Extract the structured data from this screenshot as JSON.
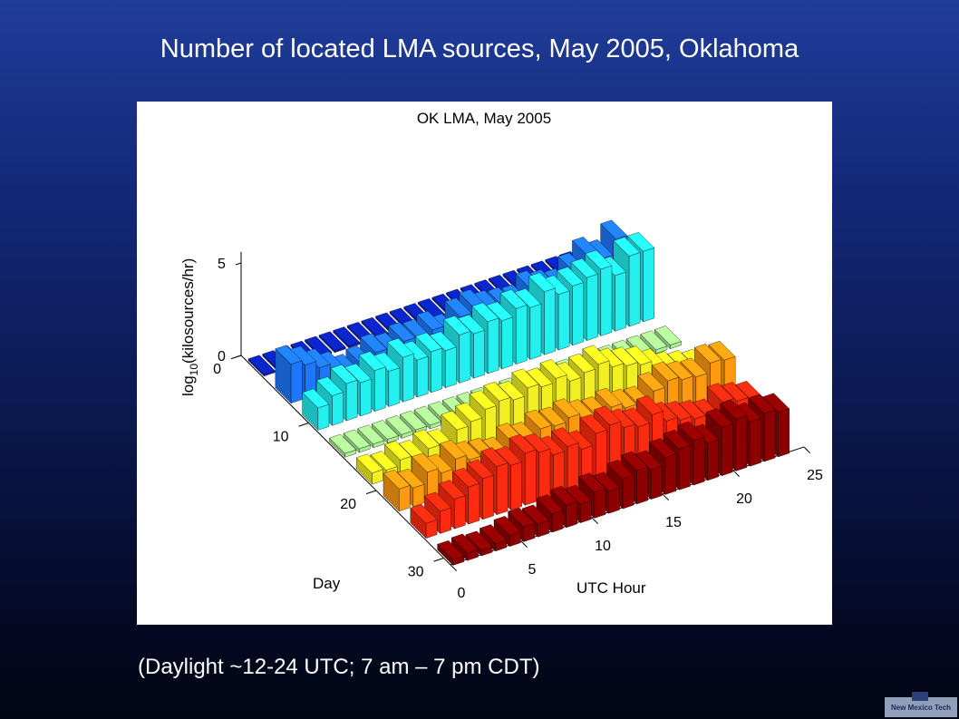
{
  "slide": {
    "title": "Number of located LMA sources, May 2005, Oklahoma",
    "caption": "(Daylight ~12-24 UTC;  7 am – 7 pm CDT)",
    "logo_text": "New Mexico Tech"
  },
  "chart_data": {
    "type": "bar3d",
    "title": "OK LMA, May 2005",
    "xlabel": "UTC Hour",
    "ylabel": "Day",
    "zlabel_parts": [
      "log",
      "10",
      "(kilosources/hr)"
    ],
    "x_ticks": [
      "0",
      "5",
      "10",
      "15",
      "20",
      "25"
    ],
    "y_ticks": [
      "0",
      "10",
      "20",
      "30"
    ],
    "z_ticks": [
      "0",
      "5"
    ],
    "xlim": [
      0,
      25
    ],
    "ylim": [
      0,
      31
    ],
    "zlim": [
      0,
      5
    ],
    "colormap": "jet",
    "rows": [
      {
        "day": 2,
        "color": "#0a22b8",
        "values": [
          0.1,
          0.1,
          0.1,
          0.1,
          0.1,
          0.1,
          0.1,
          0.1,
          0.1,
          0.1,
          0.1,
          0.1,
          0.1,
          0.1,
          0.1,
          0.1,
          0.1,
          0.1,
          0.1,
          0.1,
          0.1,
          0.1,
          0.1,
          0.1
        ]
      },
      {
        "day": 6,
        "color": "#1e78ff",
        "values": [
          2.1,
          1.8,
          1.4,
          1.0,
          0.6,
          0.8,
          1.2,
          1.0,
          1.3,
          1.2,
          1.4,
          1.0,
          1.6,
          1.8,
          1.5,
          1.4,
          1.3,
          1.8,
          1.6,
          1.4,
          2.0,
          2.6,
          2.2,
          3.0
        ]
      },
      {
        "day": 10,
        "color": "#24f0f0",
        "values": [
          1.2,
          1.6,
          2.0,
          1.8,
          2.2,
          1.9,
          2.4,
          2.0,
          2.2,
          2.0,
          2.6,
          2.4,
          2.8,
          2.6,
          3.0,
          2.8,
          3.4,
          3.0,
          3.2,
          3.4,
          3.6,
          3.0,
          3.8,
          3.8
        ]
      },
      {
        "day": 14,
        "color": "#a8f090",
        "values": [
          0.2,
          0.2,
          0.2,
          0.2,
          0.2,
          0.2,
          0.2,
          0.2,
          0.2,
          0.2,
          0.2,
          0.2,
          0.2,
          0.2,
          0.2,
          0.2,
          0.2,
          0.2,
          0.2,
          0.2,
          0.2,
          0.2,
          0.2,
          0.2
        ]
      },
      {
        "day": 18,
        "color": "#f2f020",
        "values": [
          0.6,
          0.5,
          0.8,
          0.6,
          0.9,
          0.7,
          1.4,
          1.6,
          2.0,
          2.2,
          2.0,
          2.4,
          2.2,
          2.4,
          2.0,
          2.2,
          2.4,
          2.0,
          1.8,
          1.6,
          1.2,
          0.8,
          0.6,
          0.4
        ]
      },
      {
        "day": 22,
        "color": "#ff9a10",
        "values": [
          1.2,
          1.0,
          1.6,
          1.3,
          1.8,
          1.5,
          1.4,
          1.2,
          1.7,
          1.5,
          1.9,
          1.8,
          2.0,
          1.7,
          1.6,
          1.8,
          1.5,
          1.4,
          1.9,
          2.2,
          2.0,
          1.9,
          2.4,
          2.3
        ]
      },
      {
        "day": 26,
        "color": "#ff2a10",
        "values": [
          0.8,
          1.2,
          1.6,
          2.0,
          2.2,
          2.6,
          2.4,
          2.8,
          2.6,
          2.2,
          2.4,
          2.0,
          2.6,
          2.8,
          2.4,
          2.2,
          2.6,
          2.0,
          1.8,
          1.6,
          1.4,
          2.0,
          1.8,
          1.6
        ]
      },
      {
        "day": 30,
        "color": "#8c0000",
        "values": [
          0.3,
          0.4,
          0.3,
          0.4,
          0.6,
          0.8,
          0.7,
          1.0,
          1.2,
          1.0,
          1.4,
          1.2,
          1.6,
          1.8,
          1.6,
          2.0,
          2.2,
          2.4,
          2.0,
          2.6,
          2.8,
          2.4,
          2.6,
          2.4
        ]
      }
    ]
  }
}
